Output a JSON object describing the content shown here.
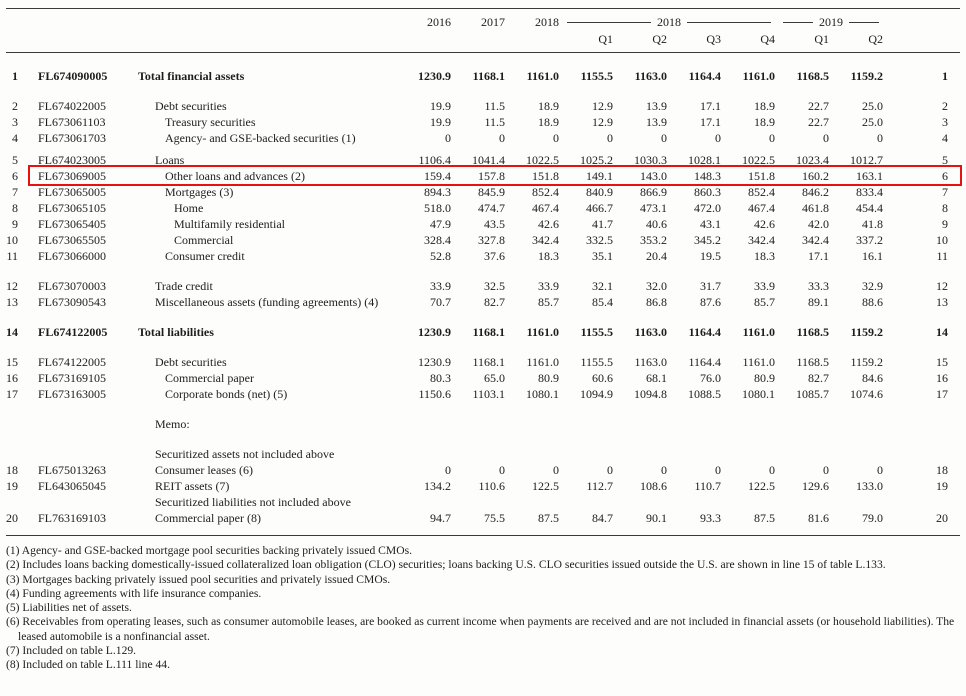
{
  "table": {
    "annual_columns": [
      "2016",
      "2017",
      "2018"
    ],
    "quarter_groups": [
      {
        "year": "2018",
        "quarters": [
          "Q1",
          "Q2",
          "Q3",
          "Q4"
        ]
      },
      {
        "year": "2019",
        "quarters": [
          "Q1",
          "Q2"
        ]
      }
    ],
    "highlight_color": "#e51212",
    "rows": [
      {
        "line": "1",
        "code": "FL674090005",
        "label": "Total financial assets",
        "indent": 0,
        "bold": true,
        "values": [
          "1230.9",
          "1168.1",
          "1161.0",
          "1155.5",
          "1163.0",
          "1164.4",
          "1161.0",
          "1168.5",
          "1159.2"
        ]
      },
      {
        "line": "2",
        "code": "FL674022005",
        "label": "Debt securities",
        "indent": 1,
        "gap": "small",
        "values": [
          "19.9",
          "11.5",
          "18.9",
          "12.9",
          "13.9",
          "17.1",
          "18.9",
          "22.7",
          "25.0"
        ]
      },
      {
        "line": "3",
        "code": "FL673061103",
        "label": "Treasury securities",
        "indent": 2,
        "values": [
          "19.9",
          "11.5",
          "18.9",
          "12.9",
          "13.9",
          "17.1",
          "18.9",
          "22.7",
          "25.0"
        ]
      },
      {
        "line": "4",
        "code": "FL673061703",
        "label": "Agency- and GSE-backed securities (1)",
        "indent": 2,
        "values": [
          "0",
          "0",
          "0",
          "0",
          "0",
          "0",
          "0",
          "0",
          "0"
        ]
      },
      {
        "line": "5",
        "code": "FL674023005",
        "label": "Loans",
        "indent": 1,
        "gap": "half",
        "values": [
          "1106.4",
          "1041.4",
          "1022.5",
          "1025.2",
          "1030.3",
          "1028.1",
          "1022.5",
          "1023.4",
          "1012.7"
        ]
      },
      {
        "line": "6",
        "code": "FL673069005",
        "label": "Other loans and advances (2)",
        "indent": 2,
        "highlight": true,
        "values": [
          "159.4",
          "157.8",
          "151.8",
          "149.1",
          "143.0",
          "148.3",
          "151.8",
          "160.2",
          "163.1"
        ]
      },
      {
        "line": "7",
        "code": "FL673065005",
        "label": "Mortgages (3)",
        "indent": 2,
        "values": [
          "894.3",
          "845.9",
          "852.4",
          "840.9",
          "866.9",
          "860.3",
          "852.4",
          "846.2",
          "833.4"
        ]
      },
      {
        "line": "8",
        "code": "FL673065105",
        "label": "Home",
        "indent": 3,
        "values": [
          "518.0",
          "474.7",
          "467.4",
          "466.7",
          "473.1",
          "472.0",
          "467.4",
          "461.8",
          "454.4"
        ]
      },
      {
        "line": "9",
        "code": "FL673065405",
        "label": "Multifamily residential",
        "indent": 3,
        "values": [
          "47.9",
          "43.5",
          "42.6",
          "41.7",
          "40.6",
          "43.1",
          "42.6",
          "42.0",
          "41.8"
        ]
      },
      {
        "line": "10",
        "code": "FL673065505",
        "label": "Commercial",
        "indent": 3,
        "values": [
          "328.4",
          "327.8",
          "342.4",
          "332.5",
          "353.2",
          "345.2",
          "342.4",
          "342.4",
          "337.2"
        ]
      },
      {
        "line": "11",
        "code": "FL673066000",
        "label": "Consumer credit",
        "indent": 2,
        "values": [
          "52.8",
          "37.6",
          "18.3",
          "35.1",
          "20.4",
          "19.5",
          "18.3",
          "17.1",
          "16.1"
        ]
      },
      {
        "line": "12",
        "code": "FL673070003",
        "label": "Trade credit",
        "indent": 1,
        "gap": "small",
        "values": [
          "33.9",
          "32.5",
          "33.9",
          "32.1",
          "32.0",
          "31.7",
          "33.9",
          "33.3",
          "32.9"
        ]
      },
      {
        "line": "13",
        "code": "FL673090543",
        "label": "Miscellaneous assets (funding agreements) (4)",
        "indent": 1,
        "values": [
          "70.7",
          "82.7",
          "85.7",
          "85.4",
          "86.8",
          "87.6",
          "85.7",
          "89.1",
          "88.6"
        ]
      },
      {
        "line": "14",
        "code": "FL674122005",
        "label": "Total liabilities",
        "indent": 0,
        "bold": true,
        "gap": "small",
        "values": [
          "1230.9",
          "1168.1",
          "1161.0",
          "1155.5",
          "1163.0",
          "1164.4",
          "1161.0",
          "1168.5",
          "1159.2"
        ]
      },
      {
        "line": "15",
        "code": "FL674122005",
        "label": "Debt securities",
        "indent": 1,
        "gap": "small",
        "values": [
          "1230.9",
          "1168.1",
          "1161.0",
          "1155.5",
          "1163.0",
          "1164.4",
          "1161.0",
          "1168.5",
          "1159.2"
        ]
      },
      {
        "line": "16",
        "code": "FL673169105",
        "label": "Commercial paper",
        "indent": 2,
        "values": [
          "80.3",
          "65.0",
          "80.9",
          "60.6",
          "68.1",
          "76.0",
          "80.9",
          "82.7",
          "84.6"
        ]
      },
      {
        "line": "17",
        "code": "FL673163005",
        "label": "Corporate bonds (net) (5)",
        "indent": 2,
        "values": [
          "1150.6",
          "1103.1",
          "1080.1",
          "1094.9",
          "1094.8",
          "1088.5",
          "1080.1",
          "1085.7",
          "1074.6"
        ]
      },
      {
        "type": "section",
        "label": "Memo:",
        "gap": "large"
      },
      {
        "type": "section",
        "label": "Securitized assets not included above",
        "gap": "large"
      },
      {
        "line": "18",
        "code": "FL675013263",
        "label": "Consumer leases (6)",
        "indent": 1,
        "values": [
          "0",
          "0",
          "0",
          "0",
          "0",
          "0",
          "0",
          "0",
          "0"
        ]
      },
      {
        "line": "19",
        "code": "FL643065045",
        "label": "REIT assets (7)",
        "indent": 1,
        "values": [
          "134.2",
          "110.6",
          "122.5",
          "112.7",
          "108.6",
          "110.7",
          "122.5",
          "129.6",
          "133.0"
        ]
      },
      {
        "type": "section",
        "label": "Securitized liabilities not included above"
      },
      {
        "line": "20",
        "code": "FL763169103",
        "label": "Commercial paper (8)",
        "indent": 1,
        "values": [
          "94.7",
          "75.5",
          "87.5",
          "84.7",
          "90.1",
          "93.3",
          "87.5",
          "81.6",
          "79.0"
        ]
      }
    ]
  },
  "footnotes": [
    "(1) Agency- and GSE-backed mortgage pool securities backing privately issued CMOs.",
    "(2) Includes loans backing domestically-issued collateralized loan obligation (CLO) securities; loans backing U.S. CLO securities issued outside the U.S. are shown in line 15 of table L.133.",
    "(3) Mortgages backing privately issued pool securities and privately issued CMOs.",
    "(4) Funding agreements with life insurance companies.",
    "(5) Liabilities net of assets.",
    "(6) Receivables from operating leases, such as consumer automobile leases, are booked as current income when payments are received and are not included in financial assets (or household liabilities). The leased automobile is a nonfinancial asset.",
    "(7) Included on table L.129.",
    "(8) Included on table L.111 line 44."
  ]
}
